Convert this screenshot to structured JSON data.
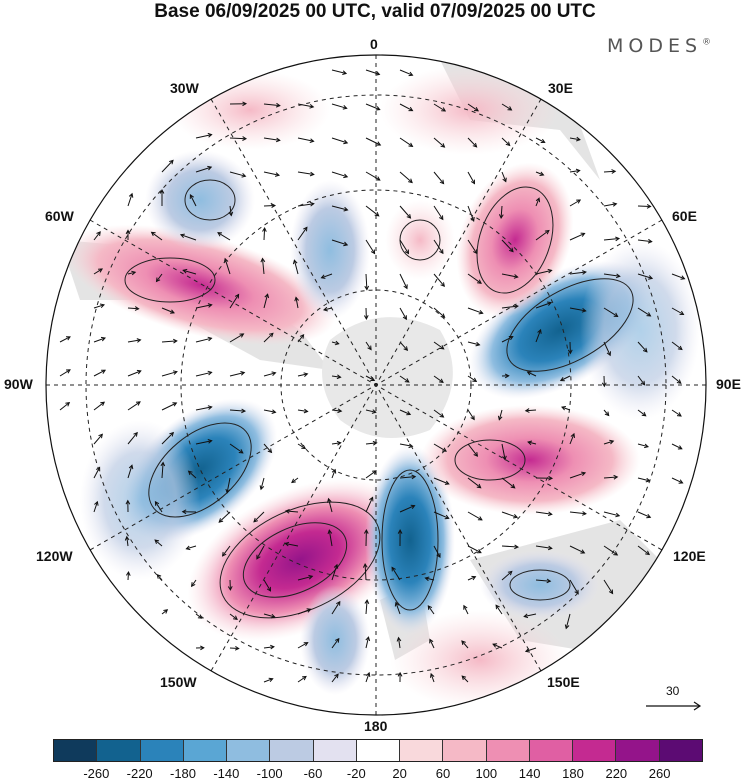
{
  "title": "Base 06/09/2025 00 UTC, valid 07/09/2025 00 UTC",
  "brand": "MODES",
  "brand_mark": "®",
  "longitude_labels": {
    "top": "0",
    "bottom": "180",
    "left": "90W",
    "right": "90E",
    "n30w": "30W",
    "n30e": "30E",
    "n60w": "60W",
    "n60e": "60E",
    "s120w": "120W",
    "s120e": "120E",
    "s150w": "150W",
    "s150e": "150E"
  },
  "reference_vector": {
    "label": "30"
  },
  "colorbar": {
    "ticks": [
      "-260",
      "-220",
      "-180",
      "-140",
      "-100",
      "-60",
      "-20",
      "20",
      "60",
      "100",
      "140",
      "180",
      "220",
      "260"
    ],
    "colors": [
      "#0f3a5c",
      "#12628f",
      "#2b83ba",
      "#5aa6d4",
      "#8fbde0",
      "#bccbe3",
      "#e3e1f0",
      "#ffffff",
      "#f9d9dc",
      "#f5b9c6",
      "#ee8fb3",
      "#e05fa3",
      "#c42a91",
      "#94148a",
      "#5c0b73"
    ]
  },
  "anomaly_centers": [
    {
      "name": "blue",
      "value": -180
    },
    {
      "name": "magenta",
      "value": 240
    }
  ]
}
